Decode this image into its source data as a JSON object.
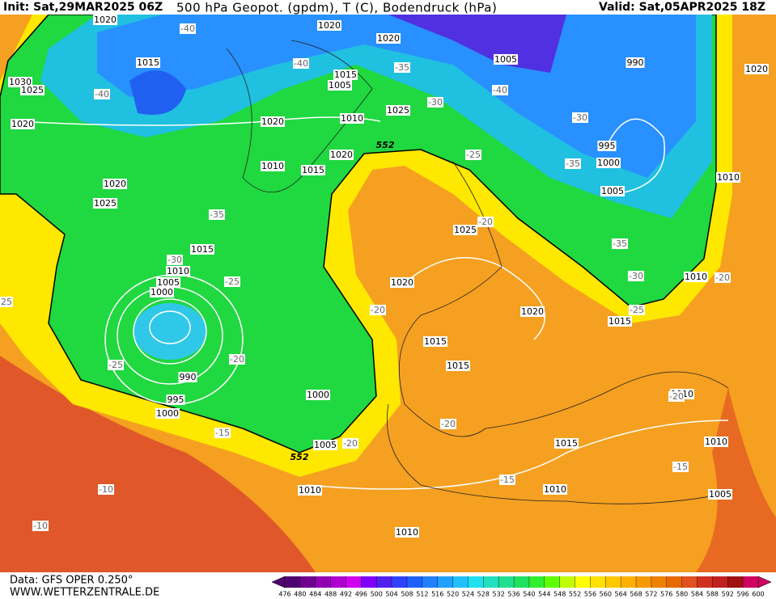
{
  "header": {
    "init": "Init: Sat,29MAR2025 06Z",
    "title": "500 hPa Geopot. (gpdm), T (C), Bodendruck (hPa)",
    "valid": "Valid: Sat,05APR2025 18Z"
  },
  "map": {
    "isobar_labels": [
      "1020",
      "1020",
      "1020",
      "1015",
      "1030",
      "1025",
      "1020",
      "1015",
      "1005",
      "1010",
      "1020",
      "1025",
      "1020",
      "1010",
      "1015",
      "1005",
      "990",
      "1020",
      "995",
      "1000",
      "1005",
      "1010",
      "1020",
      "1025",
      "1015",
      "1010",
      "1005",
      "1000",
      "1025",
      "1020",
      "1020",
      "1015",
      "1010",
      "1015",
      "1015",
      "990",
      "995",
      "1000",
      "1000",
      "1005",
      "1010",
      "1010",
      "1015",
      "1010",
      "1010",
      "1005",
      "1010"
    ],
    "temperature_labels": [
      "-40",
      "-40",
      "-40",
      "-35",
      "-30",
      "-40",
      "-30",
      "-35",
      "-25",
      "-35",
      "-30",
      "-25",
      "-20",
      "-35",
      "-30",
      "-25",
      "-20",
      "-20",
      "-25",
      "-20",
      "-15",
      "-20",
      "-20",
      "-15",
      "-15",
      "-10",
      "-10",
      "-20",
      "25"
    ],
    "contour_labels": [
      "552",
      "552"
    ]
  },
  "footer": {
    "data": "Data: GFS OPER 0.250°",
    "site": "WWW.WETTERZENTRALE.DE"
  },
  "legend": {
    "ticks": [
      476,
      480,
      484,
      488,
      492,
      496,
      500,
      504,
      508,
      512,
      516,
      520,
      524,
      528,
      532,
      536,
      540,
      544,
      548,
      552,
      556,
      560,
      564,
      568,
      572,
      576,
      580,
      584,
      588,
      592,
      596,
      600
    ],
    "colors": [
      "#500070",
      "#700090",
      "#9000b0",
      "#b000d0",
      "#d000f0",
      "#8000ff",
      "#5020f0",
      "#3040ff",
      "#2060ff",
      "#2080ff",
      "#20a0ff",
      "#20c0ff",
      "#20e0f0",
      "#20e0c0",
      "#20e090",
      "#20e060",
      "#30f030",
      "#60ff00",
      "#c0ff00",
      "#ffff00",
      "#ffe000",
      "#ffc800",
      "#ffb000",
      "#f59a00",
      "#f08000",
      "#e86800",
      "#e05020",
      "#d03020",
      "#c02020",
      "#a01010",
      "#d00060"
    ]
  }
}
